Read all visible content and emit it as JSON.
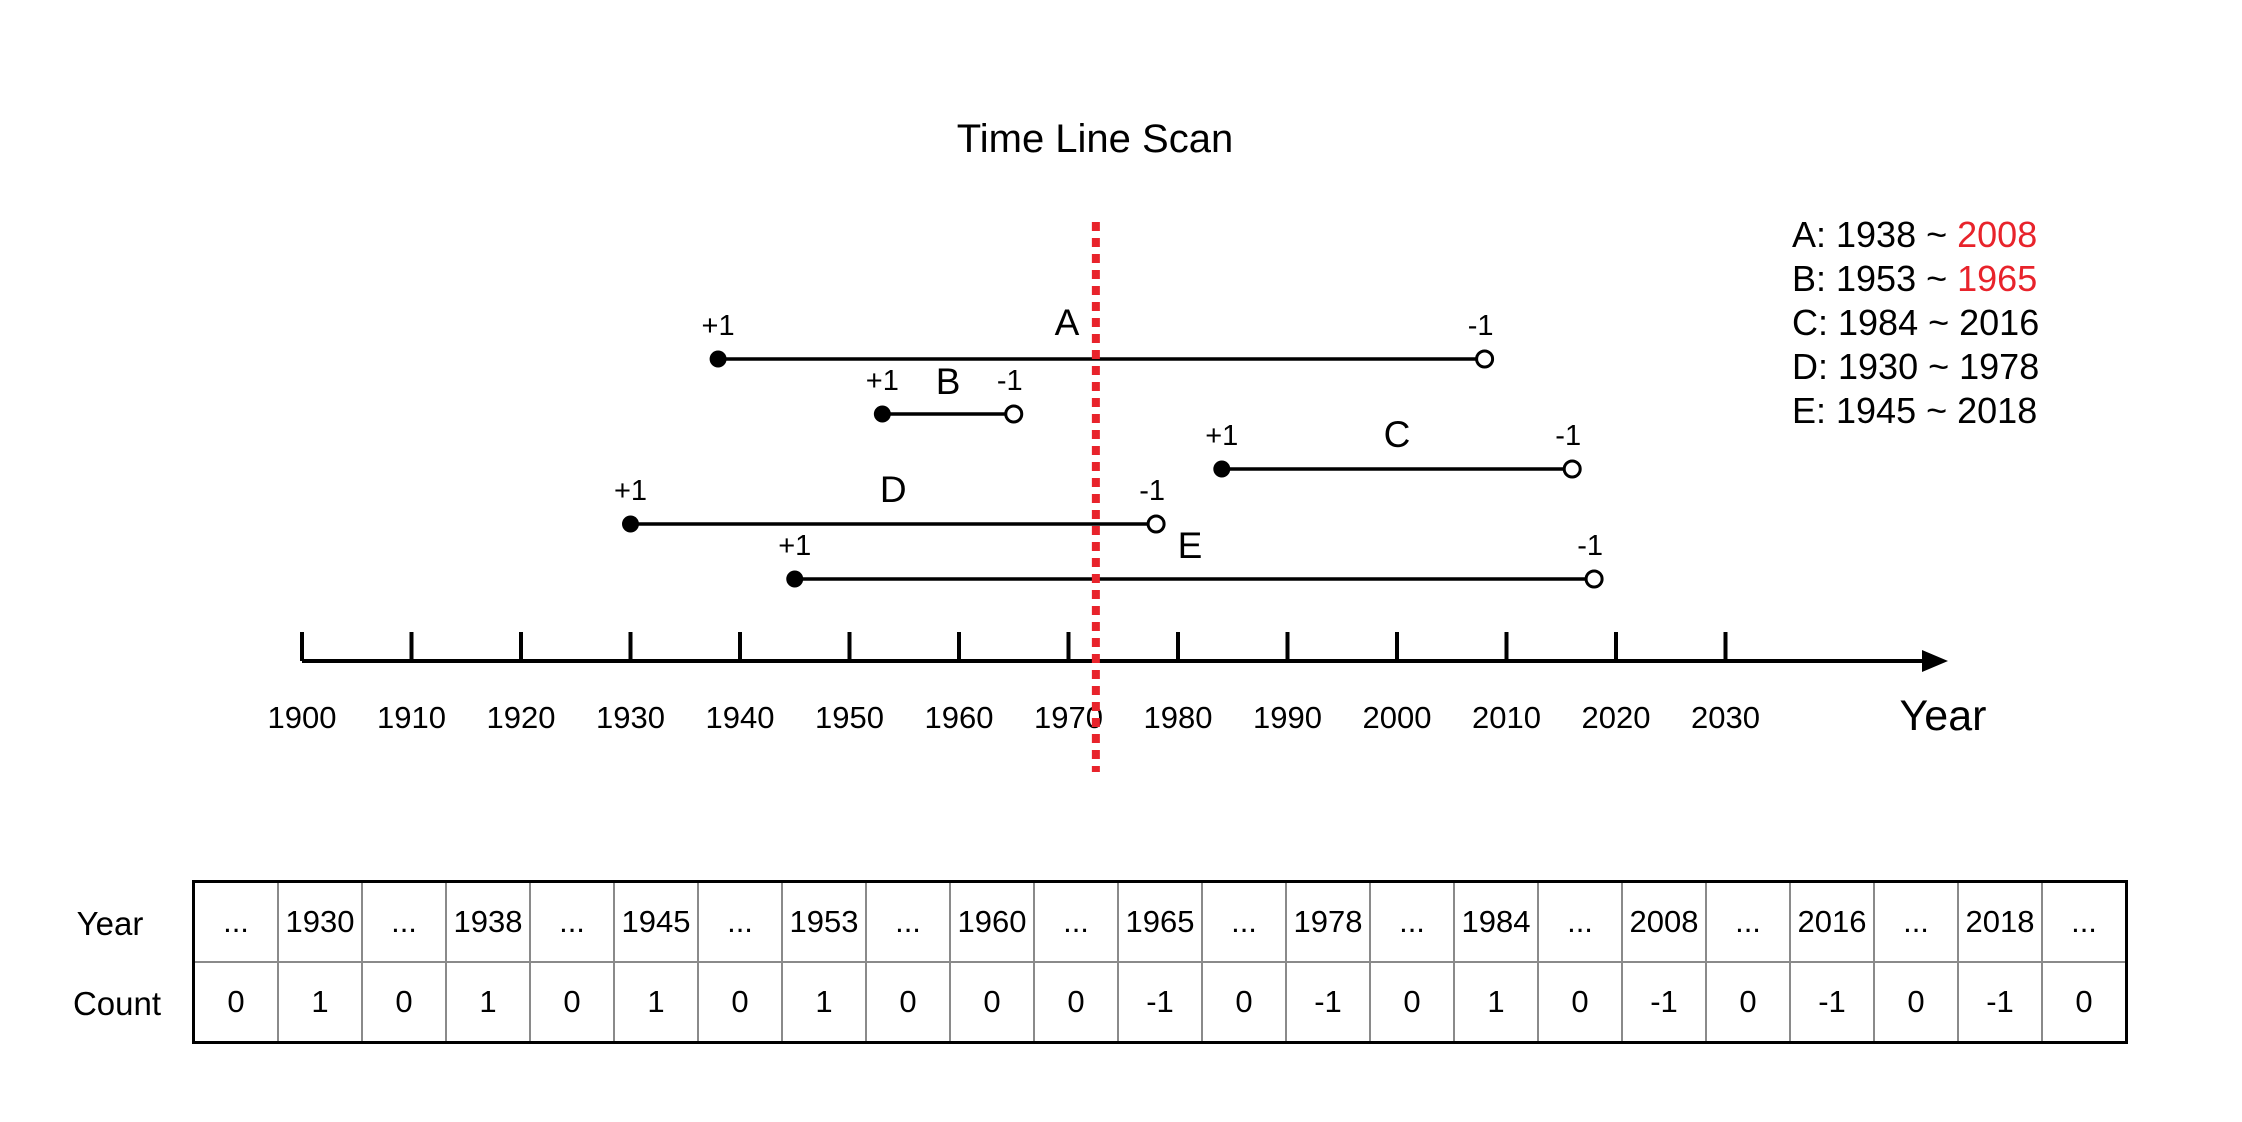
{
  "title": "Time Line Scan",
  "axis": {
    "label": "Year",
    "ticks": [
      "1900",
      "1910",
      "1920",
      "1930",
      "1940",
      "1950",
      "1960",
      "1970",
      "1980",
      "1990",
      "2000",
      "2010",
      "2020",
      "2030"
    ],
    "min": 1900,
    "max": 2030
  },
  "scan_line_year": 1972.5,
  "colors": {
    "highlight": "#e8232b",
    "scan_line": "#e8232b",
    "line": "#000000"
  },
  "intervals": [
    {
      "name": "A",
      "start": 1938,
      "end": 2008,
      "start_sign": "+1",
      "end_sign": "-1"
    },
    {
      "name": "B",
      "start": 1953,
      "end": 1965,
      "start_sign": "+1",
      "end_sign": "-1"
    },
    {
      "name": "C",
      "start": 1984,
      "end": 2016,
      "start_sign": "+1",
      "end_sign": "-1"
    },
    {
      "name": "D",
      "start": 1930,
      "end": 1978,
      "start_sign": "+1",
      "end_sign": "-1"
    },
    {
      "name": "E",
      "start": 1945,
      "end": 2018,
      "start_sign": "+1",
      "end_sign": "-1"
    }
  ],
  "legend": [
    {
      "prefix": "A: 1938 ~ ",
      "end": "2008",
      "highlight": true
    },
    {
      "prefix": "B: 1953 ~ ",
      "end": "1965",
      "highlight": true
    },
    {
      "prefix": "C: 1984 ~ ",
      "end": "2016",
      "highlight": false
    },
    {
      "prefix": "D: 1930 ~ ",
      "end": "1978",
      "highlight": false
    },
    {
      "prefix": "E: 1945 ~ ",
      "end": "2018",
      "highlight": false
    }
  ],
  "table": {
    "row_labels": {
      "year": "Year",
      "count": "Count"
    },
    "years": [
      "...",
      "1930",
      "...",
      "1938",
      "...",
      "1945",
      "...",
      "1953",
      "...",
      "1960",
      "...",
      "1965",
      "...",
      "1978",
      "...",
      "1984",
      "...",
      "2008",
      "...",
      "2016",
      "...",
      "2018",
      "..."
    ],
    "counts": [
      "0",
      "1",
      "0",
      "1",
      "0",
      "1",
      "0",
      "1",
      "0",
      "0",
      "0",
      "-1",
      "0",
      "-1",
      "0",
      "1",
      "0",
      "-1",
      "0",
      "-1",
      "0",
      "-1",
      "0"
    ]
  }
}
